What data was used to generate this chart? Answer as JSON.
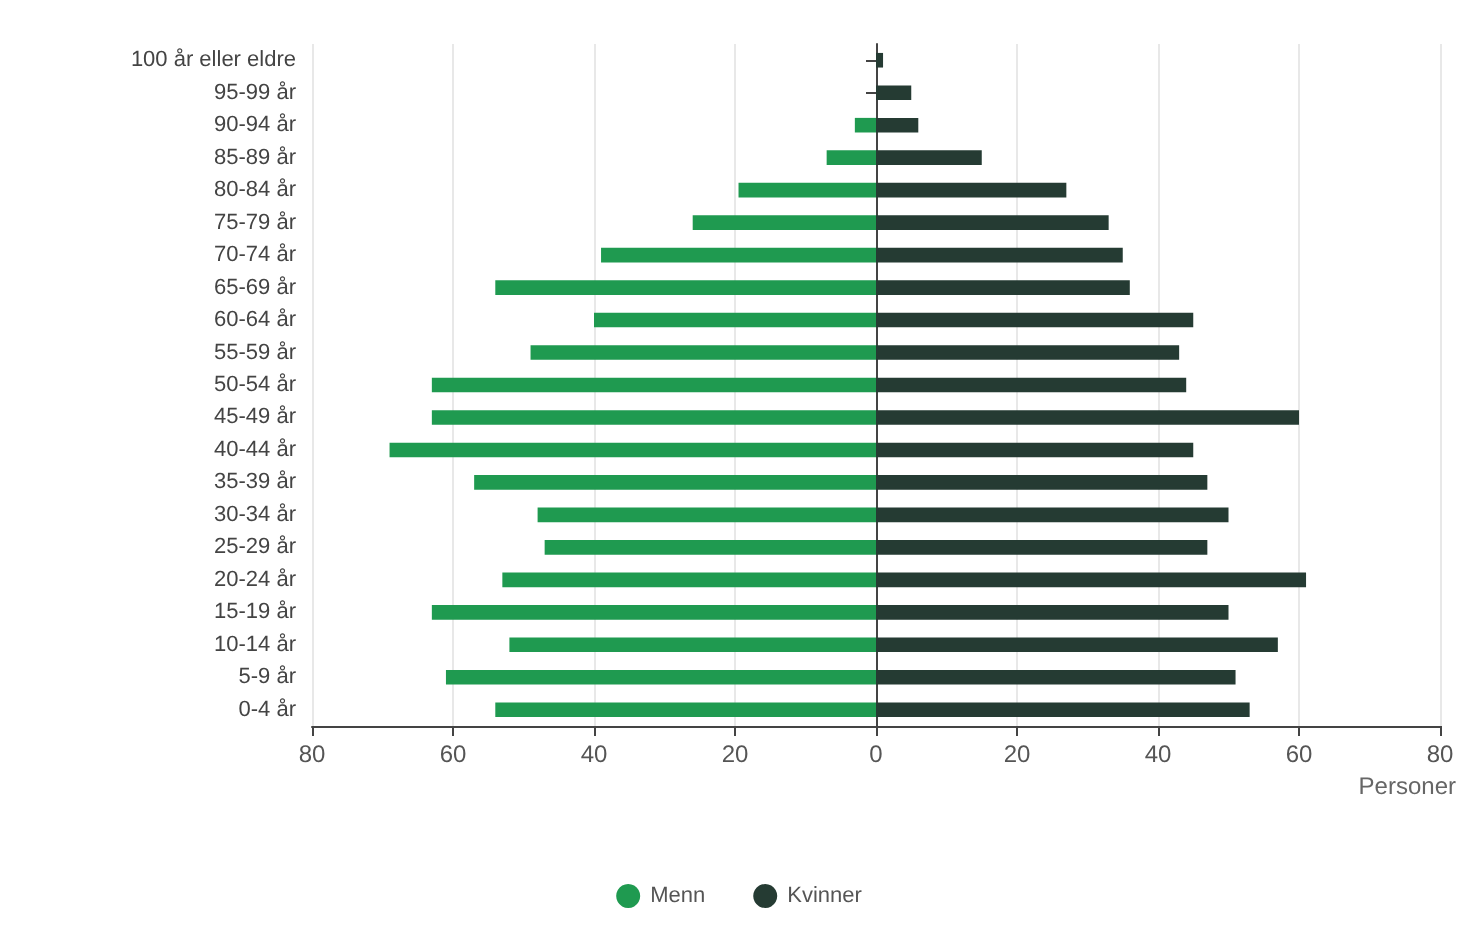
{
  "chart_data": {
    "type": "bar",
    "orientation": "horizontal",
    "xlabel": "Personer",
    "categories": [
      "100 år eller eldre",
      "95-99 år",
      "90-94 år",
      "85-89 år",
      "80-84 år",
      "75-79 år",
      "70-74 år",
      "65-69 år",
      "60-64 år",
      "55-59 år",
      "50-54 år",
      "45-49 år",
      "40-44 år",
      "35-39 år",
      "30-34 år",
      "25-29 år",
      "20-24 år",
      "15-19 år",
      "10-14 år",
      "5-9 år",
      "0-4 år"
    ],
    "series": [
      {
        "name": "Menn",
        "color": "#1f9a50",
        "values": [
          0,
          0,
          -3,
          -7,
          -19.5,
          -26,
          -39,
          -54,
          -40,
          -49,
          -63,
          -63,
          -69,
          -57,
          -48,
          -47,
          -53,
          -63,
          -52,
          -61,
          -54
        ]
      },
      {
        "name": "Kvinner",
        "color": "#253b33",
        "values": [
          1,
          5,
          6,
          15,
          27,
          33,
          35,
          36,
          45,
          43,
          44,
          60,
          45,
          47,
          50,
          47,
          61,
          50,
          57,
          51,
          53
        ]
      }
    ],
    "xlim": [
      -80,
      80
    ],
    "xticks": [
      {
        "value": -80,
        "label": "80"
      },
      {
        "value": -60,
        "label": "60"
      },
      {
        "value": -40,
        "label": "40"
      },
      {
        "value": -20,
        "label": "20"
      },
      0,
      20,
      40,
      60,
      80
    ],
    "grid": "x",
    "legend": "bottom",
    "stacked": true
  }
}
